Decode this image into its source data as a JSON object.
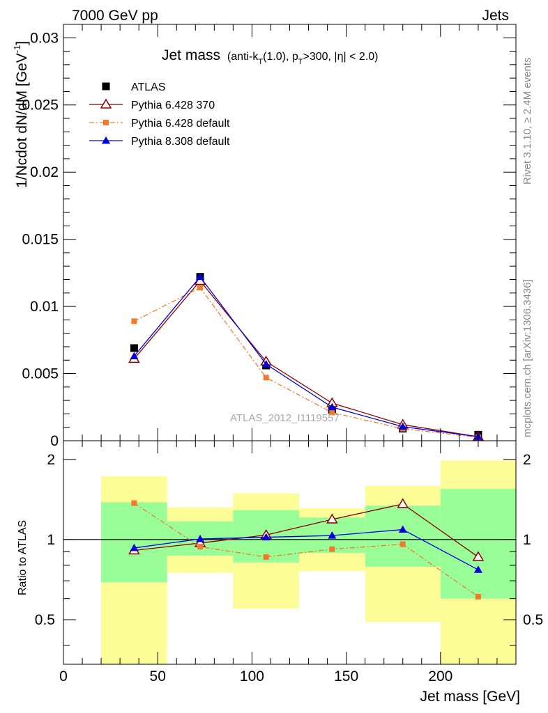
{
  "header": {
    "left": "7000 GeV pp",
    "right": "Jets"
  },
  "title": {
    "main": "Jet mass",
    "sub": "(anti-k",
    "sub_t": "T",
    "sub_mid": "(1.0), p",
    "sub_pt": "T",
    "sub_end": ">300, |η| < 2.0)"
  },
  "side_labels": {
    "rivet": "Rivet 3.1.10, ≥ 2.4M events",
    "mcplots": "mcplots.cern.ch [arXiv:1306.3436]"
  },
  "watermark": "ATLAS_2012_I1119557",
  "colors": {
    "atlas": "#000000",
    "py6_370": "#8b0000",
    "py6_default": "#f47a2b",
    "py8": "#0000dd",
    "band_inner": "#99fd98",
    "band_outer": "#fdfd98"
  },
  "chart_data": [
    {
      "type": "line",
      "panel": "main",
      "ylabel": "1/Ncdot dN/dM [GeV",
      "ylabel_sup": "-1",
      "ylabel_end": "]",
      "ylim": [
        0,
        0.031
      ],
      "yticks": [
        0,
        0.005,
        0.01,
        0.015,
        0.02,
        0.025,
        0.03
      ],
      "ytick_labels": [
        "0",
        "0.005",
        "0.01",
        "0.015",
        "0.02",
        "0.025",
        "0.03"
      ],
      "xlim": [
        0,
        240
      ],
      "legend_position": "top-left",
      "series": [
        {
          "name": "ATLAS",
          "marker": "square",
          "x": [
            37.5,
            72.5,
            107.5,
            142.5,
            180,
            220
          ],
          "values": [
            0.0069,
            0.0122,
            0.0056,
            0.0023,
            0.0009,
            0.00045
          ]
        },
        {
          "name": "Pythia 6.428 370",
          "marker": "open-triangle",
          "x": [
            37.5,
            72.5,
            107.5,
            142.5,
            180,
            220
          ],
          "values": [
            0.0061,
            0.0119,
            0.0059,
            0.0028,
            0.0012,
            0.0003
          ]
        },
        {
          "name": "Pythia 6.428 default",
          "marker": "small-square",
          "dash": true,
          "x": [
            37.5,
            72.5,
            107.5,
            142.5,
            180,
            220
          ],
          "values": [
            0.0089,
            0.0114,
            0.0047,
            0.0021,
            0.0009,
            0.00025
          ]
        },
        {
          "name": "Pythia 8.308 default",
          "marker": "triangle",
          "x": [
            37.5,
            72.5,
            107.5,
            142.5,
            180,
            220
          ],
          "values": [
            0.0063,
            0.0122,
            0.0057,
            0.0025,
            0.00105,
            0.0003
          ]
        }
      ]
    },
    {
      "type": "line",
      "panel": "ratio",
      "ylabel": "Ratio to ATLAS",
      "xlabel": "Jet mass [GeV]",
      "ylim": [
        0.34,
        2.35
      ],
      "yticks": [
        0.5,
        1,
        2
      ],
      "ytick_labels": [
        "0.5",
        "1",
        "2"
      ],
      "xlim": [
        0,
        240
      ],
      "xticks": [
        0,
        50,
        100,
        150,
        200
      ],
      "xtick_labels": [
        "0",
        "50",
        "100",
        "150",
        "200"
      ],
      "bins": [
        [
          20,
          55
        ],
        [
          55,
          90
        ],
        [
          90,
          125
        ],
        [
          125,
          160
        ],
        [
          160,
          200
        ],
        [
          200,
          240
        ]
      ],
      "band_inner": {
        "lo": [
          0.69,
          0.87,
          0.82,
          0.89,
          0.79,
          0.6
        ],
        "hi": [
          1.38,
          1.17,
          1.29,
          1.21,
          1.34,
          1.55
        ]
      },
      "band_outer": {
        "lo": [
          0.34,
          0.75,
          0.55,
          0.76,
          0.49,
          0.34
        ],
        "hi": [
          1.73,
          1.32,
          1.49,
          1.31,
          1.59,
          1.98
        ]
      },
      "series": [
        {
          "name": "Pythia 6.428 370",
          "x": [
            37.5,
            72.5,
            107.5,
            142.5,
            180,
            220
          ],
          "values": [
            0.91,
            0.97,
            1.04,
            1.19,
            1.36,
            0.86
          ]
        },
        {
          "name": "Pythia 6.428 default",
          "x": [
            37.5,
            72.5,
            107.5,
            142.5,
            180,
            220
          ],
          "values": [
            1.37,
            0.94,
            0.86,
            0.92,
            0.96,
            0.61
          ]
        },
        {
          "name": "Pythia 8.308 default",
          "x": [
            37.5,
            72.5,
            107.5,
            142.5,
            180,
            220
          ],
          "values": [
            0.93,
            1.005,
            1.02,
            1.035,
            1.09,
            0.77
          ]
        }
      ]
    }
  ]
}
